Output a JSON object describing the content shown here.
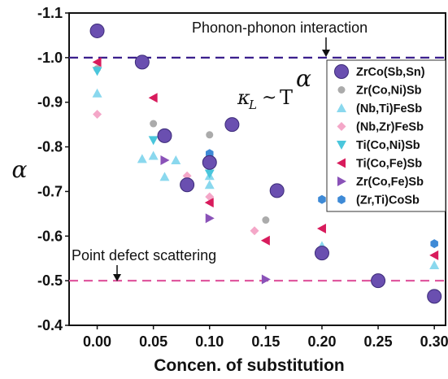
{
  "chart_data": {
    "type": "scatter",
    "title": "",
    "xlabel": "Concen. of substitution",
    "ylabel": "α",
    "xlim": [
      -0.025,
      0.31
    ],
    "ylim": [
      -0.4,
      -1.1
    ],
    "y_reversed": true,
    "x_ticks": [
      "0.00",
      "0.05",
      "0.10",
      "0.15",
      "0.20",
      "0.25",
      "0.30"
    ],
    "y_ticks": [
      "-1.1",
      "-1.0",
      "-0.9",
      "-0.8",
      "-0.7",
      "-0.6",
      "-0.5",
      "-0.4"
    ],
    "grid": false,
    "legend_position": "right",
    "reference_lines": [
      {
        "y": -1.0,
        "color": "#3a1f8c",
        "style": "dashed",
        "label": "Phonon-phonon interaction"
      },
      {
        "y": -0.5,
        "color": "#e05aa0",
        "style": "dashed",
        "label": "Point defect scattering"
      }
    ],
    "formula": {
      "kappa": "κ",
      "sub": "L",
      "tilde": "~",
      "T": "T",
      "exp": "α"
    },
    "series": [
      {
        "name": "ZrCo(Sb,Sn)",
        "marker": "circle-large",
        "color": "#6a4fb0",
        "x": [
          0.0,
          0.04,
          0.06,
          0.08,
          0.1,
          0.12,
          0.16,
          0.2,
          0.25,
          0.3
        ],
        "y": [
          -1.06,
          -0.99,
          -0.825,
          -0.715,
          -0.765,
          -0.85,
          -0.702,
          -0.562,
          -0.5,
          -0.465
        ]
      },
      {
        "name": "Zr(Co,Ni)Sb",
        "marker": "circle-small",
        "color": "#ababab",
        "x": [
          0.0,
          0.05,
          0.1,
          0.15
        ],
        "y": [
          -0.975,
          -0.852,
          -0.827,
          -0.636
        ]
      },
      {
        "name": "(Nb,Ti)FeSb",
        "marker": "triangle-up",
        "color": "#8ad8ee",
        "x": [
          0.0,
          0.04,
          0.05,
          0.06,
          0.07,
          0.1,
          0.1,
          0.2,
          0.3
        ],
        "y": [
          -0.92,
          -0.773,
          -0.78,
          -0.733,
          -0.77,
          -0.735,
          -0.715,
          -0.578,
          -0.535
        ]
      },
      {
        "name": "(Nb,Zr)FeSb",
        "marker": "diamond",
        "color": "#f4a7c8",
        "x": [
          0.0,
          0.08,
          0.1,
          0.14
        ],
        "y": [
          -0.873,
          -0.735,
          -0.688,
          -0.612
        ]
      },
      {
        "name": "Ti(Co,Ni)Sb",
        "marker": "triangle-down",
        "color": "#4ac6dc",
        "x": [
          0.0,
          0.05,
          0.1
        ],
        "y": [
          -0.97,
          -0.815,
          -0.74
        ]
      },
      {
        "name": "Ti(Co,Fe)Sb",
        "marker": "triangle-left",
        "color": "#d81b5c",
        "x": [
          0.0,
          0.05,
          0.1,
          0.15,
          0.2,
          0.3
        ],
        "y": [
          -0.99,
          -0.91,
          -0.675,
          -0.59,
          -0.617,
          -0.557
        ]
      },
      {
        "name": "Zr(Co,Fe)Sb",
        "marker": "triangle-right",
        "color": "#8a52b8",
        "x": [
          0.06,
          0.1,
          0.15
        ],
        "y": [
          -0.77,
          -0.64,
          -0.503
        ]
      },
      {
        "name": "(Zr,Ti)CoSb",
        "marker": "hexagon",
        "color": "#3e8ad6",
        "x": [
          0.1,
          0.2,
          0.3
        ],
        "y": [
          -0.785,
          -0.682,
          -0.583
        ]
      }
    ]
  }
}
